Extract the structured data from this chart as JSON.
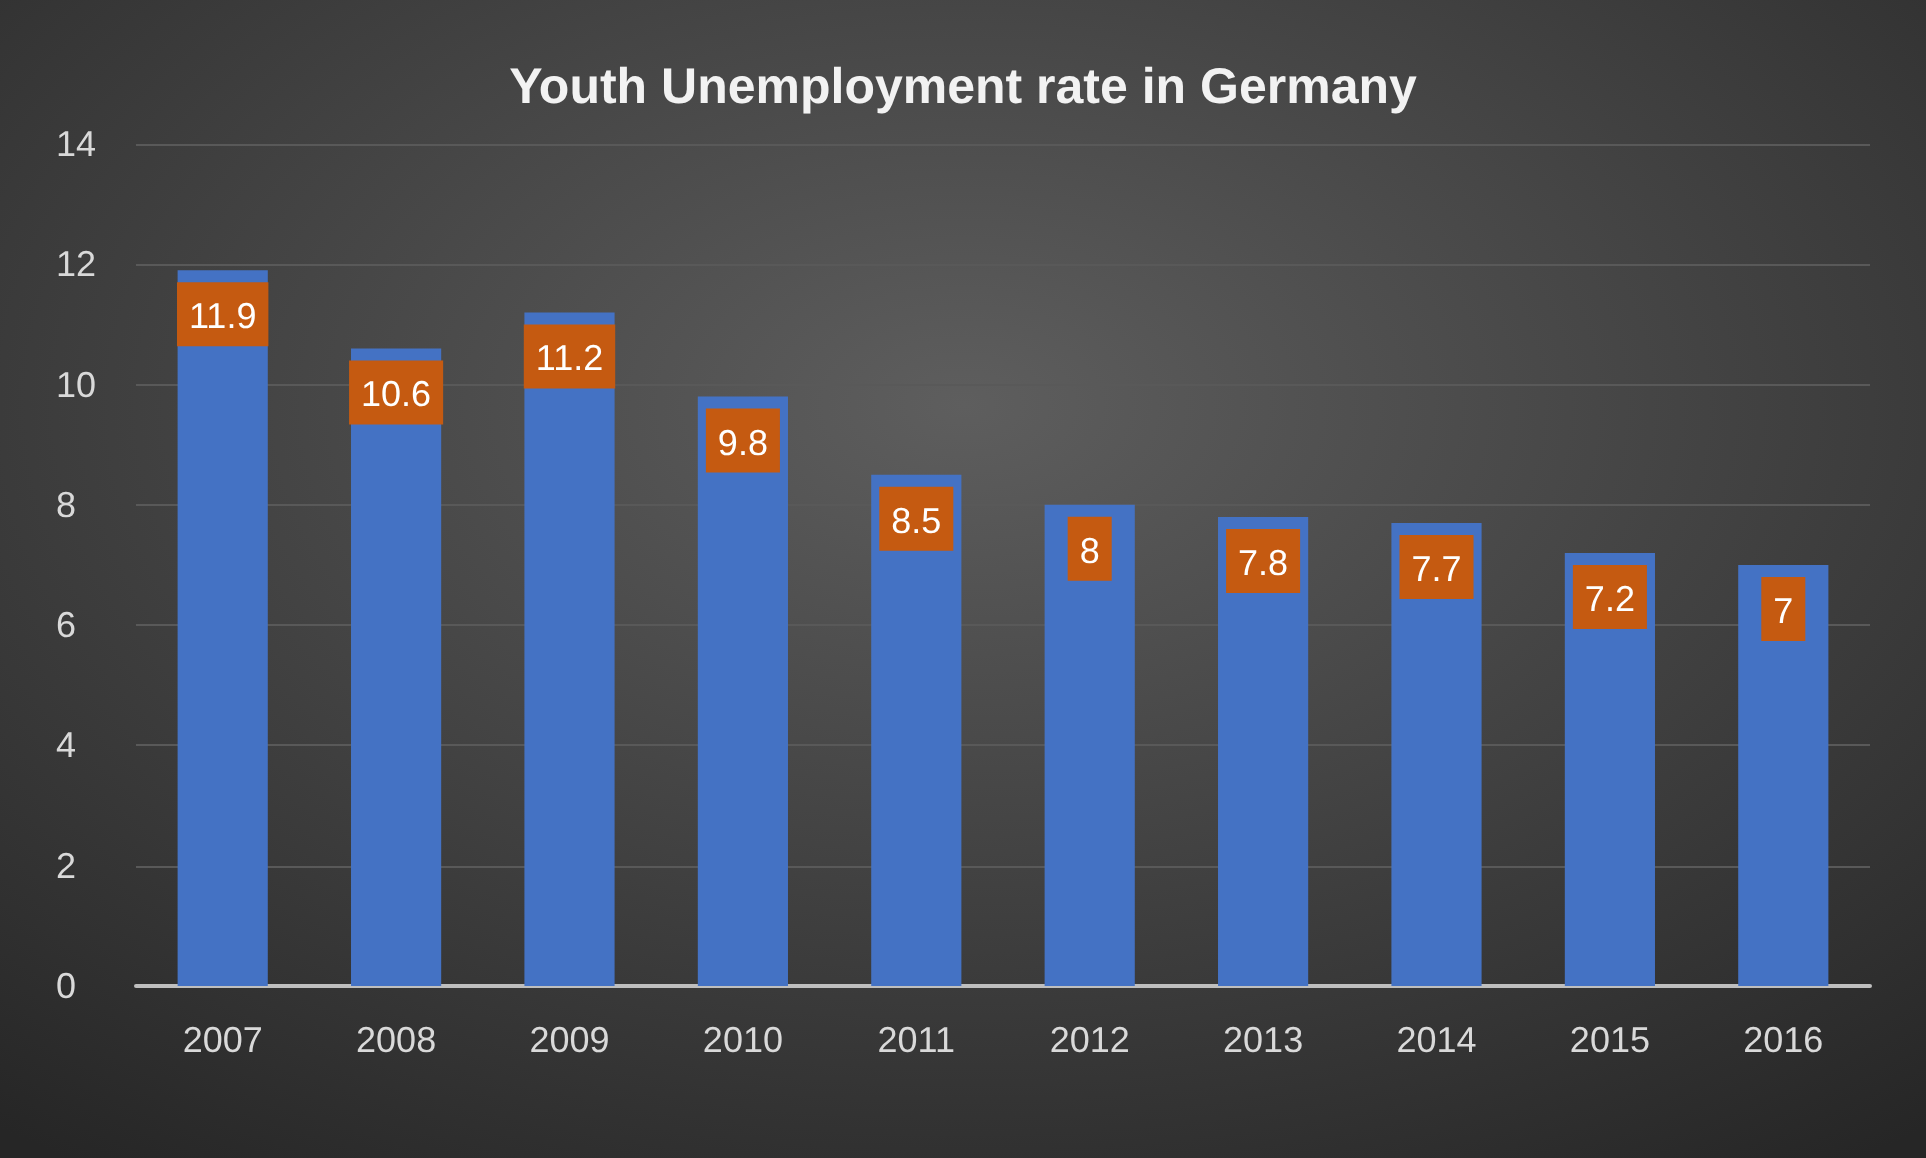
{
  "chart_data": {
    "type": "bar",
    "title": "Youth Unemployment rate in Germany",
    "categories": [
      "2007",
      "2008",
      "2009",
      "2010",
      "2011",
      "2012",
      "2013",
      "2014",
      "2015",
      "2016"
    ],
    "values": [
      11.9,
      10.6,
      11.2,
      9.8,
      8.5,
      8,
      7.8,
      7.7,
      7.2,
      7
    ],
    "color": "#4472c4",
    "ylim": [
      0,
      14
    ],
    "yticks": [
      0,
      2,
      4,
      6,
      8,
      10,
      12,
      14
    ],
    "grid": "y",
    "data_labels": true
  }
}
